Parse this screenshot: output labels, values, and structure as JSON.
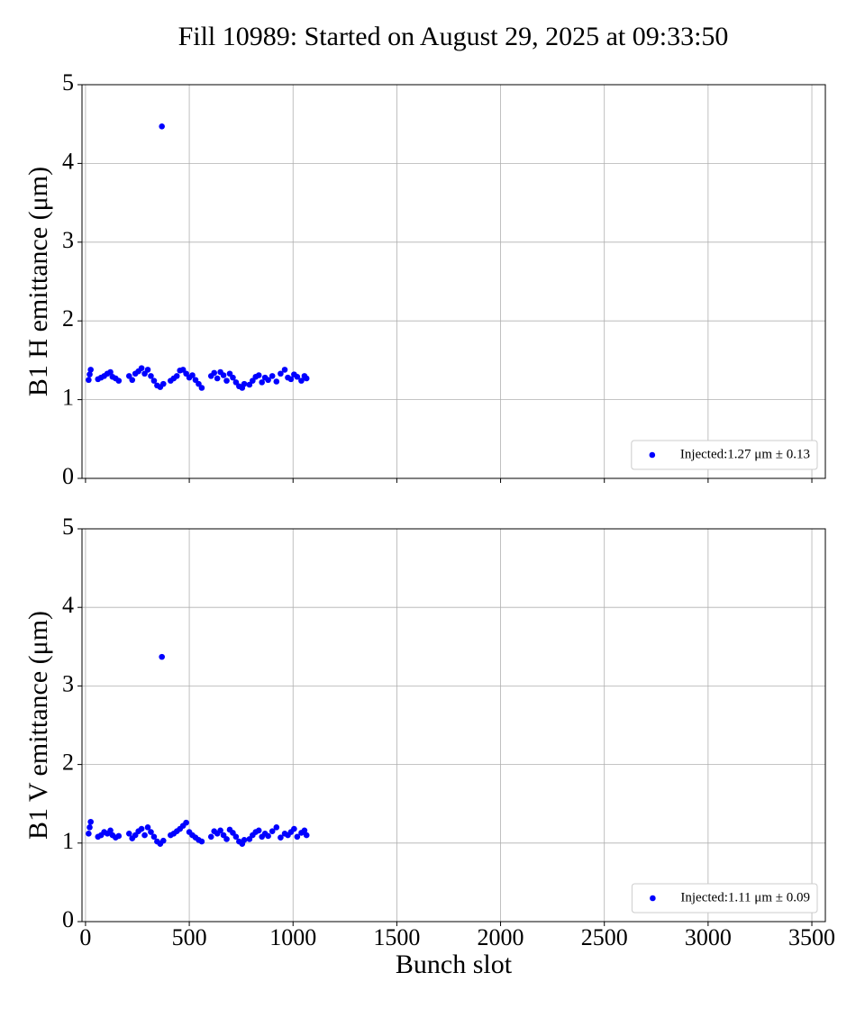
{
  "chart_data": [
    {
      "type": "scatter",
      "title": "Fill 10989: Started on August 29, 2025 at 09:33:50",
      "ylabel": "B1 H emittance (μm)",
      "xlim": [
        -17,
        3565
      ],
      "ylim": [
        0,
        5
      ],
      "xticks": [
        0,
        500,
        1000,
        1500,
        2000,
        2500,
        3000,
        3500
      ],
      "yticks": [
        0,
        1,
        2,
        3,
        4,
        5
      ],
      "xtick_labels": false,
      "grid": true,
      "legend": "lower right",
      "series": [
        {
          "name": "Injected:1.27 μm ± 0.13",
          "color": "#0000ff",
          "x": [
            15,
            20,
            25,
            60,
            75,
            90,
            105,
            120,
            130,
            145,
            160,
            210,
            225,
            240,
            255,
            270,
            285,
            300,
            315,
            330,
            345,
            360,
            368,
            375,
            410,
            425,
            440,
            455,
            470,
            485,
            500,
            515,
            530,
            545,
            560,
            605,
            620,
            635,
            650,
            665,
            680,
            695,
            710,
            725,
            740,
            755,
            765,
            790,
            805,
            820,
            835,
            850,
            865,
            880,
            900,
            920,
            940,
            960,
            975,
            990,
            1005,
            1020,
            1040,
            1055,
            1065
          ],
          "values": [
            1.25,
            1.32,
            1.38,
            1.26,
            1.28,
            1.3,
            1.33,
            1.35,
            1.29,
            1.27,
            1.24,
            1.3,
            1.25,
            1.33,
            1.36,
            1.4,
            1.33,
            1.38,
            1.3,
            1.24,
            1.18,
            1.16,
            4.47,
            1.2,
            1.24,
            1.27,
            1.3,
            1.37,
            1.38,
            1.33,
            1.28,
            1.31,
            1.25,
            1.2,
            1.15,
            1.3,
            1.34,
            1.27,
            1.35,
            1.31,
            1.24,
            1.33,
            1.28,
            1.22,
            1.17,
            1.15,
            1.2,
            1.19,
            1.24,
            1.29,
            1.31,
            1.22,
            1.28,
            1.25,
            1.3,
            1.23,
            1.33,
            1.38,
            1.28,
            1.26,
            1.32,
            1.29,
            1.24,
            1.3,
            1.27
          ]
        }
      ]
    },
    {
      "type": "scatter",
      "xlabel": "Bunch slot",
      "ylabel": "B1 V emittance (μm)",
      "xlim": [
        -17,
        3565
      ],
      "ylim": [
        0,
        5
      ],
      "xticks": [
        0,
        500,
        1000,
        1500,
        2000,
        2500,
        3000,
        3500
      ],
      "yticks": [
        0,
        1,
        2,
        3,
        4,
        5
      ],
      "xtick_labels": true,
      "grid": true,
      "legend": "lower right",
      "series": [
        {
          "name": "Injected:1.11 μm ± 0.09",
          "color": "#0000ff",
          "x": [
            15,
            20,
            25,
            60,
            75,
            90,
            105,
            120,
            130,
            145,
            160,
            210,
            225,
            240,
            255,
            270,
            285,
            300,
            315,
            330,
            345,
            360,
            368,
            375,
            410,
            425,
            440,
            455,
            470,
            485,
            500,
            515,
            530,
            545,
            560,
            605,
            620,
            635,
            650,
            665,
            680,
            695,
            710,
            725,
            740,
            755,
            765,
            790,
            805,
            820,
            835,
            850,
            865,
            880,
            900,
            920,
            940,
            960,
            975,
            990,
            1005,
            1020,
            1040,
            1055,
            1065
          ],
          "values": [
            1.12,
            1.2,
            1.27,
            1.08,
            1.1,
            1.14,
            1.12,
            1.16,
            1.1,
            1.07,
            1.09,
            1.12,
            1.06,
            1.1,
            1.15,
            1.18,
            1.1,
            1.2,
            1.14,
            1.08,
            1.02,
            0.99,
            3.37,
            1.03,
            1.1,
            1.12,
            1.15,
            1.18,
            1.22,
            1.26,
            1.14,
            1.1,
            1.07,
            1.04,
            1.02,
            1.08,
            1.15,
            1.12,
            1.16,
            1.1,
            1.05,
            1.17,
            1.13,
            1.08,
            1.02,
            0.99,
            1.04,
            1.05,
            1.1,
            1.14,
            1.16,
            1.08,
            1.12,
            1.09,
            1.15,
            1.2,
            1.07,
            1.12,
            1.1,
            1.14,
            1.18,
            1.08,
            1.13,
            1.16,
            1.1
          ]
        }
      ]
    }
  ]
}
